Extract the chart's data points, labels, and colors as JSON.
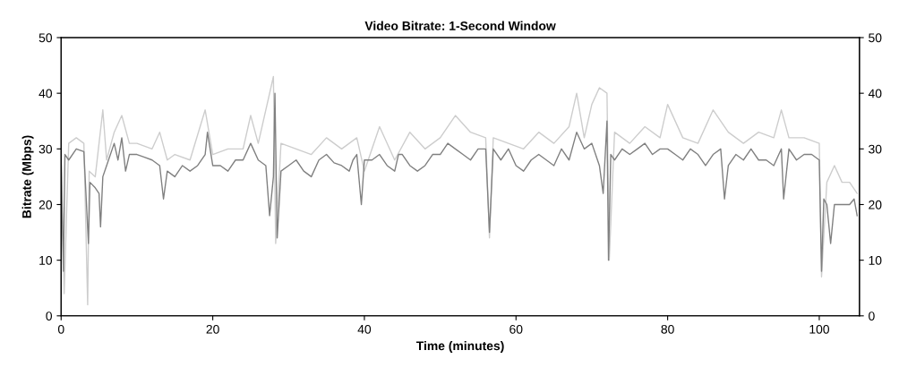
{
  "chart_data": {
    "type": "line",
    "title": "Video Bitrate: 1-Second Window",
    "xlabel": "Time (minutes)",
    "ylabel": "Bitrate (Mbps)",
    "xlim": [
      0,
      105.3
    ],
    "xticks": [
      0,
      20,
      40,
      60,
      80,
      100
    ],
    "ylim": [
      0,
      50
    ],
    "yticks": [
      0,
      10,
      20,
      30,
      40,
      50
    ],
    "y2lim": [
      0,
      50
    ],
    "y2ticks": [
      0,
      10,
      20,
      30,
      40,
      50
    ],
    "grid": false,
    "legend": false,
    "marker": "none",
    "line_style": "solid",
    "series": [
      {
        "color": "#cdcdcd",
        "x": [
          0,
          0.4,
          1,
          2,
          3,
          3.5,
          3.7,
          4.5,
          5.5,
          6,
          7,
          8,
          9,
          10,
          12,
          13,
          14,
          15,
          17,
          19,
          20,
          22,
          24,
          25,
          26,
          28,
          28.3,
          29,
          31,
          33,
          35,
          37,
          39,
          40,
          42,
          44,
          46,
          48,
          50,
          52,
          54,
          56,
          56.5,
          57,
          59,
          61,
          63,
          65,
          67,
          68,
          69,
          70,
          71,
          72,
          72.3,
          73,
          75,
          77,
          79,
          80,
          82,
          84,
          86,
          88,
          90,
          92,
          94,
          95,
          96,
          98,
          100,
          100.3,
          101,
          102,
          103,
          104,
          105
        ],
        "values": [
          30,
          4,
          31,
          32,
          31,
          2,
          26,
          25,
          37,
          28,
          33,
          36,
          31,
          31,
          30,
          33,
          28,
          29,
          28,
          37,
          29,
          30,
          30,
          36,
          31,
          43,
          13,
          31,
          30,
          29,
          32,
          30,
          32,
          26,
          34,
          28,
          33,
          30,
          32,
          36,
          33,
          32,
          14,
          32,
          31,
          30,
          33,
          31,
          34,
          40,
          32,
          38,
          41,
          40,
          10,
          33,
          31,
          34,
          32,
          38,
          32,
          31,
          37,
          33,
          31,
          33,
          32,
          37,
          32,
          32,
          31,
          7,
          24,
          27,
          24,
          24,
          22
        ]
      },
      {
        "color": "#808080",
        "x": [
          0,
          0.3,
          0.5,
          1,
          2,
          3,
          3.6,
          3.8,
          4.5,
          5,
          5.2,
          5.5,
          6,
          7,
          7.5,
          8,
          8.5,
          9,
          10,
          11,
          12,
          13,
          13.5,
          14,
          15,
          16,
          17,
          18,
          19,
          19.3,
          20,
          21,
          22,
          23,
          24,
          25,
          26,
          27,
          27.5,
          28,
          28.2,
          28.5,
          29,
          30,
          31,
          32,
          33,
          34,
          35,
          36,
          37,
          38,
          38.5,
          39,
          39.6,
          40,
          41,
          42,
          43,
          44,
          44.5,
          45,
          46,
          47,
          48,
          49,
          50,
          51,
          52,
          53,
          54,
          55,
          56,
          56.5,
          57,
          58,
          59,
          60,
          61,
          62,
          63,
          64,
          65,
          66,
          67,
          68,
          69,
          70,
          71,
          71.5,
          72,
          72.2,
          72.5,
          73,
          74,
          75,
          76,
          77,
          78,
          79,
          80,
          81,
          82,
          83,
          84,
          85,
          86,
          87,
          87.5,
          88,
          89,
          90,
          91,
          92,
          93,
          94,
          95,
          95.3,
          96,
          97,
          98,
          99,
          100,
          100.3,
          100.6,
          101,
          101.5,
          102,
          103,
          104,
          104.6,
          105
        ],
        "values": [
          28,
          8,
          29,
          28,
          30,
          29.5,
          13,
          24,
          23,
          22,
          16,
          25,
          27,
          31,
          28,
          32,
          26,
          29,
          29,
          28.5,
          28,
          27,
          21,
          26,
          25,
          27,
          26,
          27,
          29,
          33,
          27,
          27,
          26,
          28,
          28,
          31,
          28,
          27,
          18,
          25,
          40,
          14,
          26,
          27,
          28,
          26,
          25,
          28,
          29,
          27.5,
          27,
          26,
          28,
          29,
          20,
          28,
          28,
          29,
          27,
          26,
          29,
          29,
          27,
          26,
          27,
          29,
          29,
          31,
          30,
          29,
          28,
          30,
          30,
          15,
          30,
          28,
          30,
          27,
          26,
          28,
          29,
          28,
          27,
          30,
          28,
          33,
          30,
          31,
          27,
          22,
          35,
          10,
          29,
          28,
          30,
          29,
          30,
          31,
          29,
          30,
          30,
          29,
          28,
          30,
          29,
          27,
          29,
          30,
          21,
          27,
          29,
          28,
          30,
          28,
          28,
          27,
          30,
          21,
          30,
          28,
          29,
          29,
          28,
          8,
          21,
          20,
          13,
          20,
          20,
          20,
          21,
          18
        ]
      }
    ]
  }
}
